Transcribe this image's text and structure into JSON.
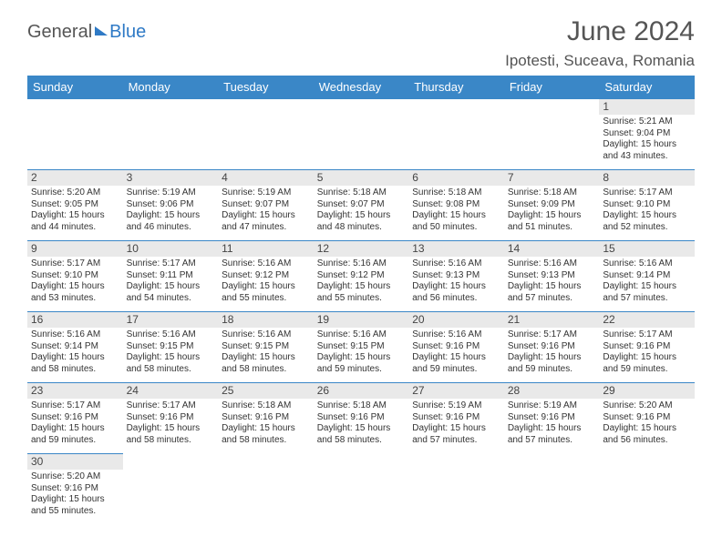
{
  "header": {
    "logo_part1": "General",
    "logo_part2": "Blue",
    "month_title": "June 2024",
    "location": "Ipotesti, Suceava, Romania"
  },
  "colors": {
    "header_bg": "#3a87c7",
    "header_text": "#ffffff",
    "daynum_bg": "#e9e9e9",
    "border": "#3a87c7",
    "title_color": "#555555",
    "logo_accent": "#2f7ac6"
  },
  "day_headers": [
    "Sunday",
    "Monday",
    "Tuesday",
    "Wednesday",
    "Thursday",
    "Friday",
    "Saturday"
  ],
  "weeks": [
    [
      null,
      null,
      null,
      null,
      null,
      null,
      {
        "n": "1",
        "sr": "Sunrise: 5:21 AM",
        "ss": "Sunset: 9:04 PM",
        "d1": "Daylight: 15 hours",
        "d2": "and 43 minutes."
      }
    ],
    [
      {
        "n": "2",
        "sr": "Sunrise: 5:20 AM",
        "ss": "Sunset: 9:05 PM",
        "d1": "Daylight: 15 hours",
        "d2": "and 44 minutes."
      },
      {
        "n": "3",
        "sr": "Sunrise: 5:19 AM",
        "ss": "Sunset: 9:06 PM",
        "d1": "Daylight: 15 hours",
        "d2": "and 46 minutes."
      },
      {
        "n": "4",
        "sr": "Sunrise: 5:19 AM",
        "ss": "Sunset: 9:07 PM",
        "d1": "Daylight: 15 hours",
        "d2": "and 47 minutes."
      },
      {
        "n": "5",
        "sr": "Sunrise: 5:18 AM",
        "ss": "Sunset: 9:07 PM",
        "d1": "Daylight: 15 hours",
        "d2": "and 48 minutes."
      },
      {
        "n": "6",
        "sr": "Sunrise: 5:18 AM",
        "ss": "Sunset: 9:08 PM",
        "d1": "Daylight: 15 hours",
        "d2": "and 50 minutes."
      },
      {
        "n": "7",
        "sr": "Sunrise: 5:18 AM",
        "ss": "Sunset: 9:09 PM",
        "d1": "Daylight: 15 hours",
        "d2": "and 51 minutes."
      },
      {
        "n": "8",
        "sr": "Sunrise: 5:17 AM",
        "ss": "Sunset: 9:10 PM",
        "d1": "Daylight: 15 hours",
        "d2": "and 52 minutes."
      }
    ],
    [
      {
        "n": "9",
        "sr": "Sunrise: 5:17 AM",
        "ss": "Sunset: 9:10 PM",
        "d1": "Daylight: 15 hours",
        "d2": "and 53 minutes."
      },
      {
        "n": "10",
        "sr": "Sunrise: 5:17 AM",
        "ss": "Sunset: 9:11 PM",
        "d1": "Daylight: 15 hours",
        "d2": "and 54 minutes."
      },
      {
        "n": "11",
        "sr": "Sunrise: 5:16 AM",
        "ss": "Sunset: 9:12 PM",
        "d1": "Daylight: 15 hours",
        "d2": "and 55 minutes."
      },
      {
        "n": "12",
        "sr": "Sunrise: 5:16 AM",
        "ss": "Sunset: 9:12 PM",
        "d1": "Daylight: 15 hours",
        "d2": "and 55 minutes."
      },
      {
        "n": "13",
        "sr": "Sunrise: 5:16 AM",
        "ss": "Sunset: 9:13 PM",
        "d1": "Daylight: 15 hours",
        "d2": "and 56 minutes."
      },
      {
        "n": "14",
        "sr": "Sunrise: 5:16 AM",
        "ss": "Sunset: 9:13 PM",
        "d1": "Daylight: 15 hours",
        "d2": "and 57 minutes."
      },
      {
        "n": "15",
        "sr": "Sunrise: 5:16 AM",
        "ss": "Sunset: 9:14 PM",
        "d1": "Daylight: 15 hours",
        "d2": "and 57 minutes."
      }
    ],
    [
      {
        "n": "16",
        "sr": "Sunrise: 5:16 AM",
        "ss": "Sunset: 9:14 PM",
        "d1": "Daylight: 15 hours",
        "d2": "and 58 minutes."
      },
      {
        "n": "17",
        "sr": "Sunrise: 5:16 AM",
        "ss": "Sunset: 9:15 PM",
        "d1": "Daylight: 15 hours",
        "d2": "and 58 minutes."
      },
      {
        "n": "18",
        "sr": "Sunrise: 5:16 AM",
        "ss": "Sunset: 9:15 PM",
        "d1": "Daylight: 15 hours",
        "d2": "and 58 minutes."
      },
      {
        "n": "19",
        "sr": "Sunrise: 5:16 AM",
        "ss": "Sunset: 9:15 PM",
        "d1": "Daylight: 15 hours",
        "d2": "and 59 minutes."
      },
      {
        "n": "20",
        "sr": "Sunrise: 5:16 AM",
        "ss": "Sunset: 9:16 PM",
        "d1": "Daylight: 15 hours",
        "d2": "and 59 minutes."
      },
      {
        "n": "21",
        "sr": "Sunrise: 5:17 AM",
        "ss": "Sunset: 9:16 PM",
        "d1": "Daylight: 15 hours",
        "d2": "and 59 minutes."
      },
      {
        "n": "22",
        "sr": "Sunrise: 5:17 AM",
        "ss": "Sunset: 9:16 PM",
        "d1": "Daylight: 15 hours",
        "d2": "and 59 minutes."
      }
    ],
    [
      {
        "n": "23",
        "sr": "Sunrise: 5:17 AM",
        "ss": "Sunset: 9:16 PM",
        "d1": "Daylight: 15 hours",
        "d2": "and 59 minutes."
      },
      {
        "n": "24",
        "sr": "Sunrise: 5:17 AM",
        "ss": "Sunset: 9:16 PM",
        "d1": "Daylight: 15 hours",
        "d2": "and 58 minutes."
      },
      {
        "n": "25",
        "sr": "Sunrise: 5:18 AM",
        "ss": "Sunset: 9:16 PM",
        "d1": "Daylight: 15 hours",
        "d2": "and 58 minutes."
      },
      {
        "n": "26",
        "sr": "Sunrise: 5:18 AM",
        "ss": "Sunset: 9:16 PM",
        "d1": "Daylight: 15 hours",
        "d2": "and 58 minutes."
      },
      {
        "n": "27",
        "sr": "Sunrise: 5:19 AM",
        "ss": "Sunset: 9:16 PM",
        "d1": "Daylight: 15 hours",
        "d2": "and 57 minutes."
      },
      {
        "n": "28",
        "sr": "Sunrise: 5:19 AM",
        "ss": "Sunset: 9:16 PM",
        "d1": "Daylight: 15 hours",
        "d2": "and 57 minutes."
      },
      {
        "n": "29",
        "sr": "Sunrise: 5:20 AM",
        "ss": "Sunset: 9:16 PM",
        "d1": "Daylight: 15 hours",
        "d2": "and 56 minutes."
      }
    ],
    [
      {
        "n": "30",
        "sr": "Sunrise: 5:20 AM",
        "ss": "Sunset: 9:16 PM",
        "d1": "Daylight: 15 hours",
        "d2": "and 55 minutes."
      },
      null,
      null,
      null,
      null,
      null,
      null
    ]
  ]
}
